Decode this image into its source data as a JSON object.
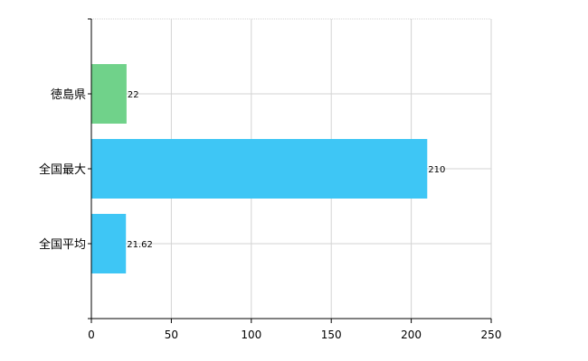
{
  "chart_data": {
    "type": "bar",
    "orientation": "horizontal",
    "categories": [
      "徳島県",
      "全国最大",
      "全国平均"
    ],
    "values": [
      22,
      210,
      21.62
    ],
    "value_labels": [
      "22",
      "210",
      "21.62"
    ],
    "bar_colors": [
      "#70d28a",
      "#3ec6f5",
      "#3ec6f5"
    ],
    "xlim": [
      0,
      250
    ],
    "x_ticks": [
      0,
      50,
      100,
      150,
      200,
      250
    ],
    "grid": true,
    "legend": "none",
    "title": "",
    "xlabel": "",
    "ylabel": ""
  }
}
